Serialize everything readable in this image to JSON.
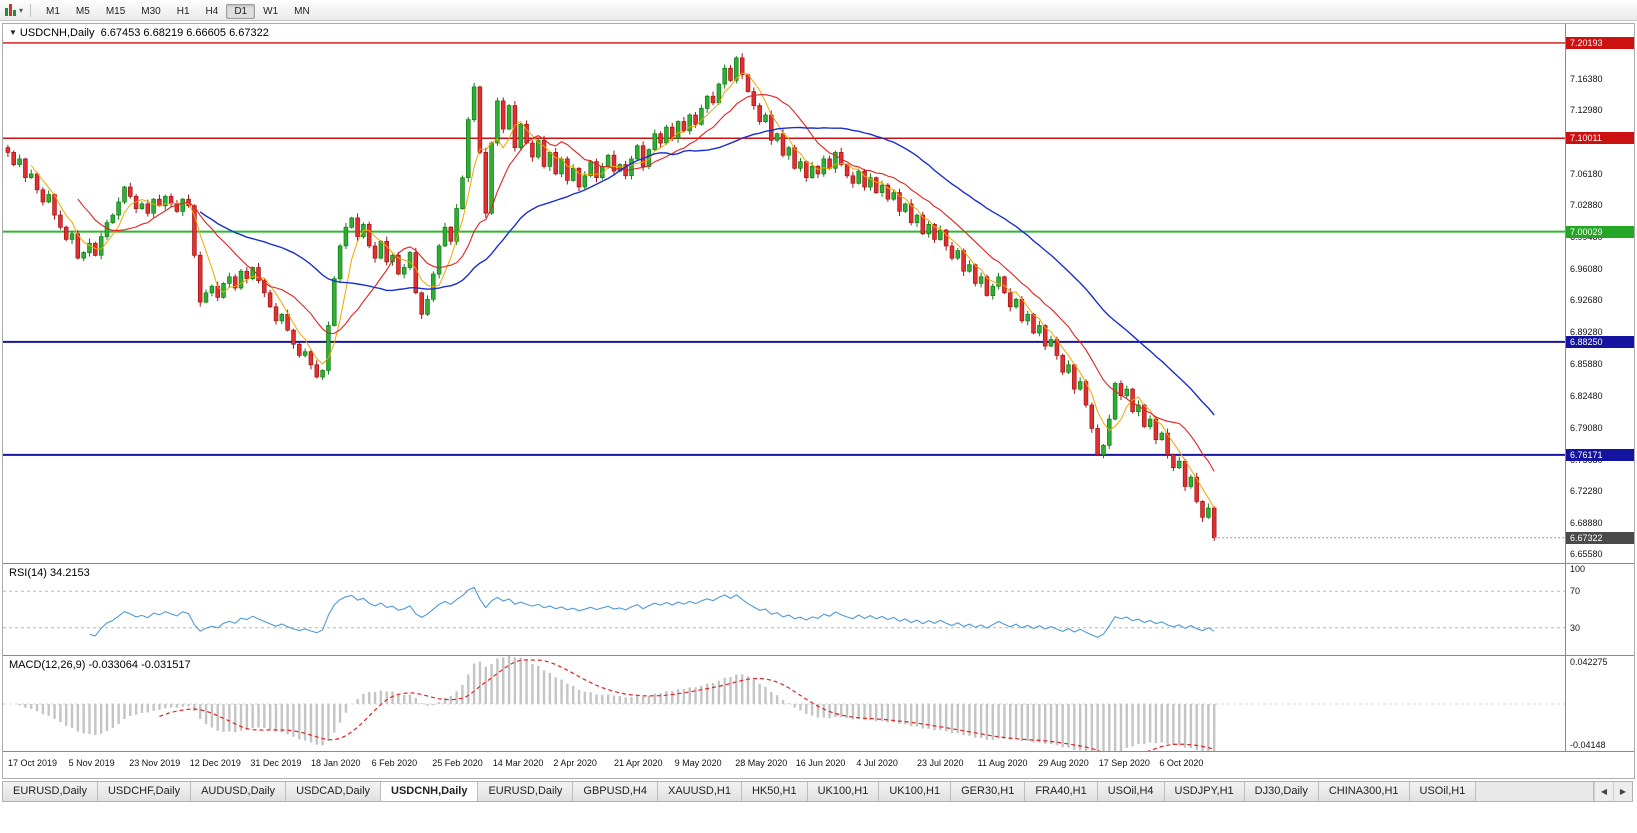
{
  "toolbar": {
    "dropdown_glyph": "▾",
    "timeframes": [
      "M1",
      "M5",
      "M15",
      "M30",
      "H1",
      "H4",
      "D1",
      "W1",
      "MN"
    ],
    "active_timeframe": "D1"
  },
  "chart_header": {
    "marker_glyph": "▼",
    "title": "USDCNH,Daily",
    "ohlc_text": "6.67453 6.68219 6.66605 6.67322"
  },
  "price_axis": {
    "ticks": [
      "7.16380",
      "7.12980",
      "7.06180",
      "7.02880",
      "6.99480",
      "6.96080",
      "6.92680",
      "6.89280",
      "6.85880",
      "6.82480",
      "6.79080",
      "6.75680",
      "6.72280",
      "6.68880",
      "6.65580"
    ],
    "badges": [
      {
        "label": "7.20193",
        "value": 7.20193,
        "bg": "#cc1111"
      },
      {
        "label": "7.10011",
        "value": 7.10011,
        "bg": "#cc1111"
      },
      {
        "label": "7.00029",
        "value": 7.00029,
        "bg": "#26a626"
      },
      {
        "label": "6.88250",
        "value": 6.8825,
        "bg": "#1414a0"
      },
      {
        "label": "6.76171",
        "value": 6.76171,
        "bg": "#1414a0"
      },
      {
        "label": "6.67322",
        "value": 6.67322,
        "bg": "#4a4a4a"
      }
    ]
  },
  "rsi_panel": {
    "label": "RSI(14)",
    "value": "34.2153",
    "axis_labels": [
      {
        "text": "100",
        "value": 100
      },
      {
        "text": "70",
        "value": 70
      },
      {
        "text": "30",
        "value": 30
      }
    ]
  },
  "macd_panel": {
    "label": "MACD(12,26,9)",
    "values": "-0.033064 -0.031517",
    "axis_top": "0.042275",
    "axis_bottom": "-0.04148"
  },
  "time_axis": [
    "17 Oct 2019",
    "5 Nov 2019",
    "23 Nov 2019",
    "12 Dec 2019",
    "31 Dec 2019",
    "18 Jan 2020",
    "6 Feb 2020",
    "25 Feb 2020",
    "14 Mar 2020",
    "2 Apr 2020",
    "21 Apr 2020",
    "9 May 2020",
    "28 May 2020",
    "16 Jun 2020",
    "4 Jul 2020",
    "23 Jul 2020",
    "11 Aug 2020",
    "29 Aug 2020",
    "17 Sep 2020",
    "6 Oct 2020"
  ],
  "tabs": {
    "active_index": 4,
    "nav_left": "◀",
    "nav_right": "▶",
    "items": [
      {
        "label": "EURUSD,Daily"
      },
      {
        "label": "USDCHF,Daily"
      },
      {
        "label": "AUDUSD,Daily"
      },
      {
        "label": "USDCAD,Daily"
      },
      {
        "label": "USDCNH,Daily"
      },
      {
        "label": "EURUSD,Daily"
      },
      {
        "label": "GBPUSD,H4"
      },
      {
        "label": "XAUUSD,H1"
      },
      {
        "label": "HK50,H1"
      },
      {
        "label": "UK100,H1"
      },
      {
        "label": "UK100,H1"
      },
      {
        "label": "GER30,H1"
      },
      {
        "label": "FRA40,H1"
      },
      {
        "label": "USOil,H4"
      },
      {
        "label": "USDJPY,H1"
      },
      {
        "label": "DJ30,Daily"
      },
      {
        "label": "CHINA300,H1"
      },
      {
        "label": "USOil,H1"
      }
    ]
  },
  "chart_data": {
    "type": "candlestick",
    "symbol": "USDCNH",
    "period": "Daily",
    "last_ohlc": {
      "open": 6.67453,
      "high": 6.68219,
      "low": 6.66605,
      "close": 6.67322
    },
    "price_range": [
      6.6462,
      7.2222
    ],
    "bars_fraction": 0.776,
    "colors": {
      "up": "#0e7d12",
      "up_fill": "#2fae34",
      "down": "#a31111",
      "down_fill": "#e03131",
      "rsi": "#4f9ad8",
      "macd_hist": "#c4c4c4",
      "macd_signal": "#e32222",
      "price_line": "#999999",
      "guide": "#b8b8b8"
    },
    "levels": [
      {
        "value": 7.20193,
        "color": "#cc1111",
        "width": 1.4
      },
      {
        "value": 7.10011,
        "color": "#cc1111",
        "width": 1.4
      },
      {
        "value": 7.00029,
        "color": "#2eb82e",
        "width": 2
      },
      {
        "value": 6.8825,
        "color": "#1414a0",
        "width": 2
      },
      {
        "value": 6.76171,
        "color": "#1414a0",
        "width": 2
      }
    ],
    "overlays": [
      {
        "name": "ma-fast",
        "period": 5,
        "color": "#f0a500",
        "width": 1
      },
      {
        "name": "ma-mid",
        "period": 13,
        "color": "#e32222",
        "width": 1.1
      },
      {
        "name": "ma-slow",
        "period": 34,
        "color": "#1a2fd0",
        "width": 1.4
      }
    ],
    "rsi": {
      "period": 14,
      "current": 34.2153,
      "range": [
        0,
        100
      ],
      "guides": [
        70,
        30
      ]
    },
    "macd": {
      "fast": 12,
      "slow": 26,
      "signal_period": 9,
      "current_macd": -0.033064,
      "current_signal": -0.031517,
      "range": [
        -0.04148,
        0.042275
      ]
    },
    "closes": [
      7.085,
      7.072,
      7.078,
      7.058,
      7.062,
      7.045,
      7.032,
      7.04,
      7.018,
      7.005,
      6.992,
      6.998,
      6.972,
      6.978,
      6.988,
      6.975,
      6.995,
      7.01,
      7.018,
      7.032,
      7.048,
      7.038,
      7.025,
      7.03,
      7.02,
      7.035,
      7.028,
      7.038,
      7.03,
      7.022,
      7.035,
      7.028,
      6.975,
      6.925,
      6.935,
      6.942,
      6.93,
      6.945,
      6.952,
      6.94,
      6.958,
      6.95,
      6.962,
      6.948,
      6.935,
      6.92,
      6.905,
      6.912,
      6.895,
      6.88,
      6.868,
      6.872,
      6.858,
      6.845,
      6.852,
      6.9,
      6.95,
      6.985,
      7.005,
      7.015,
      6.995,
      7.008,
      6.985,
      6.972,
      6.99,
      6.968,
      6.975,
      6.955,
      6.962,
      6.978,
      6.935,
      6.912,
      6.928,
      6.955,
      6.985,
      7.005,
      6.99,
      7.025,
      7.058,
      7.12,
      7.155,
      7.085,
      7.02,
      7.095,
      7.14,
      7.11,
      7.135,
      7.09,
      7.115,
      7.095,
      7.08,
      7.098,
      7.07,
      7.085,
      7.062,
      7.078,
      7.055,
      7.068,
      7.048,
      7.06,
      7.075,
      7.058,
      7.07,
      7.082,
      7.065,
      7.072,
      7.06,
      7.078,
      7.092,
      7.07,
      7.088,
      7.105,
      7.095,
      7.112,
      7.1,
      7.118,
      7.108,
      7.125,
      7.115,
      7.132,
      7.145,
      7.138,
      7.158,
      7.175,
      7.162,
      7.186,
      7.168,
      7.15,
      7.135,
      7.118,
      7.125,
      7.098,
      7.105,
      7.082,
      7.09,
      7.068,
      7.075,
      7.058,
      7.07,
      7.062,
      7.078,
      7.068,
      7.085,
      7.072,
      7.06,
      7.052,
      7.065,
      7.048,
      7.058,
      7.042,
      7.05,
      7.035,
      7.042,
      7.022,
      7.03,
      7.01,
      7.018,
      6.998,
      7.008,
      6.992,
      7.002,
      6.985,
      6.972,
      6.98,
      6.958,
      6.965,
      6.945,
      6.952,
      6.932,
      6.942,
      6.952,
      6.935,
      6.92,
      6.928,
      6.905,
      6.912,
      6.892,
      6.9,
      6.878,
      6.885,
      6.868,
      6.85,
      6.858,
      6.832,
      6.84,
      6.815,
      6.79,
      6.762,
      6.772,
      6.8,
      6.838,
      6.825,
      6.832,
      6.808,
      6.815,
      6.792,
      6.8,
      6.778,
      6.785,
      6.762,
      6.748,
      6.755,
      6.728,
      6.738,
      6.712,
      6.695,
      6.705,
      6.6732
    ]
  }
}
